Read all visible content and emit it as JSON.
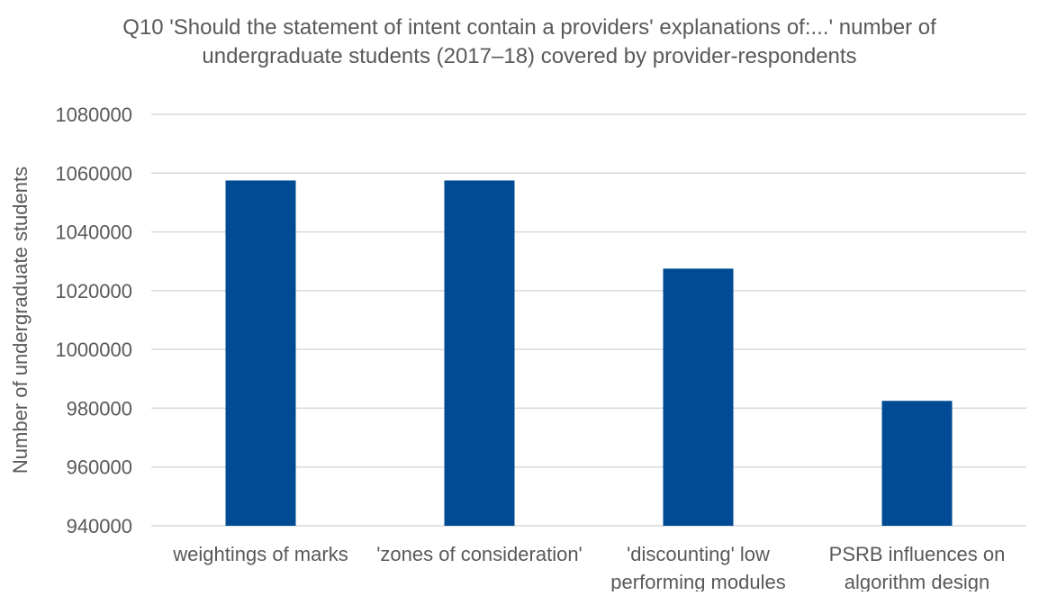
{
  "chart_data": {
    "type": "bar",
    "title_lines": [
      "Q10 'Should the statement of intent contain a providers' explanations of:...' number of",
      "undergraduate students (2017–18) covered by provider-respondents"
    ],
    "xlabel": "",
    "ylabel": "Number of undergraduate students",
    "categories": [
      [
        "weightings of marks"
      ],
      [
        "'zones of consideration'"
      ],
      [
        "'discounting' low",
        "performing modules"
      ],
      [
        "PSRB influences on",
        "algorithm design"
      ]
    ],
    "values": [
      1057500,
      1057500,
      1027500,
      982500
    ],
    "ylim": [
      940000,
      1080000
    ],
    "yticks": [
      940000,
      960000,
      980000,
      1000000,
      1020000,
      1040000,
      1060000,
      1080000
    ],
    "ytick_labels": [
      "940000",
      "960000",
      "980000",
      "1000000",
      "1020000",
      "1040000",
      "1060000",
      "1080000"
    ],
    "grid": true,
    "bar_color": "#004b93",
    "grid_color": "#d9d9d9",
    "text_color": "#595959"
  }
}
